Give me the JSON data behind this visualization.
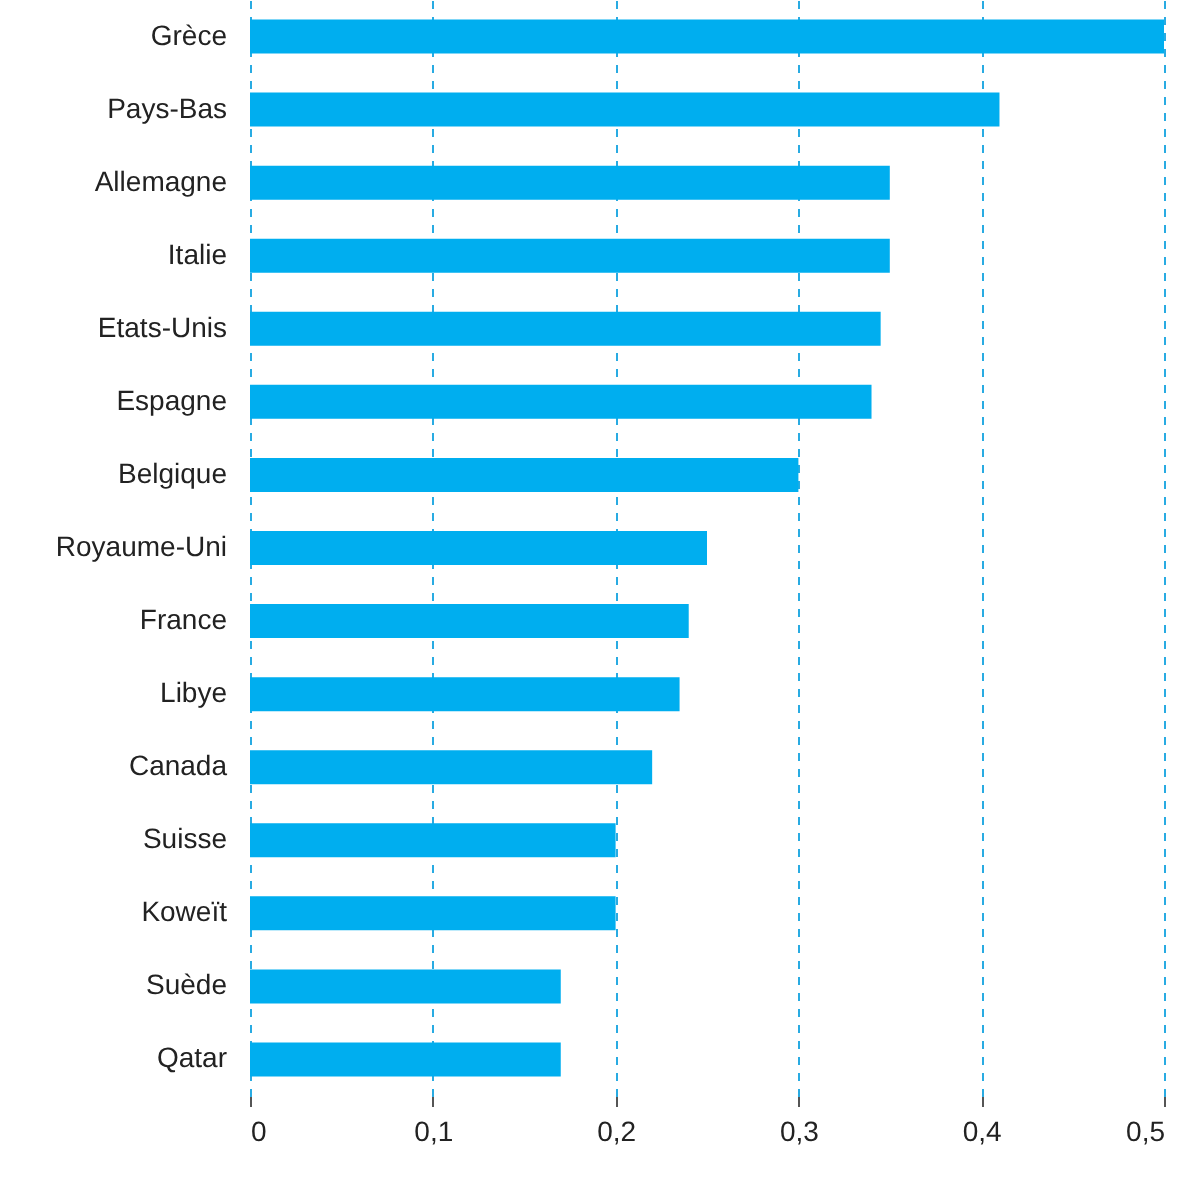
{
  "chart_data": {
    "type": "bar",
    "orientation": "horizontal",
    "categories": [
      "Grèce",
      "Pays-Bas",
      "Allemagne",
      "Italie",
      "Etats-Unis",
      "Espagne",
      "Belgique",
      "Royaume-Uni",
      "France",
      "Libye",
      "Canada",
      "Suisse",
      "Koweït",
      "Suède",
      "Qatar"
    ],
    "values": [
      0.5,
      0.41,
      0.35,
      0.35,
      0.345,
      0.34,
      0.3,
      0.25,
      0.24,
      0.235,
      0.22,
      0.2,
      0.2,
      0.17,
      0.17
    ],
    "color": "#00aeef",
    "xlim": [
      0,
      0.5
    ],
    "xticks": [
      0,
      {
        "value": 0.1,
        "label": "0,1"
      },
      {
        "value": 0.2,
        "label": "0,2"
      },
      {
        "value": 0.3,
        "label": "0,3"
      },
      {
        "value": 0.4,
        "label": "0,4"
      },
      {
        "value": 0.5,
        "label": "0,5"
      }
    ],
    "grid": "x"
  }
}
